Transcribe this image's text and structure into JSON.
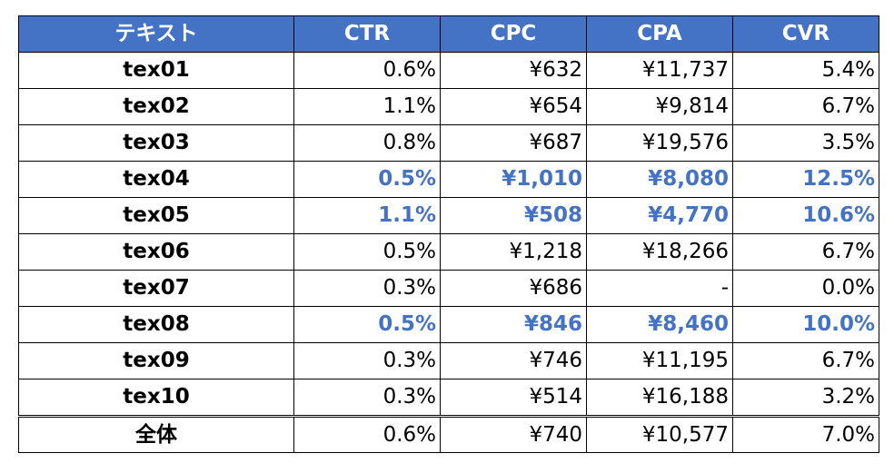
{
  "table": {
    "headers": [
      "テキスト",
      "CTR",
      "CPC",
      "CPA",
      "CVR"
    ],
    "rows": [
      {
        "name": "tex01",
        "ctr": "0.6%",
        "cpc": "¥632",
        "cpa": "¥11,737",
        "cvr": "5.4%",
        "highlight": false
      },
      {
        "name": "tex02",
        "ctr": "1.1%",
        "cpc": "¥654",
        "cpa": "¥9,814",
        "cvr": "6.7%",
        "highlight": false
      },
      {
        "name": "tex03",
        "ctr": "0.8%",
        "cpc": "¥687",
        "cpa": "¥19,576",
        "cvr": "3.5%",
        "highlight": false
      },
      {
        "name": "tex04",
        "ctr": "0.5%",
        "cpc": "¥1,010",
        "cpa": "¥8,080",
        "cvr": "12.5%",
        "highlight": true
      },
      {
        "name": "tex05",
        "ctr": "1.1%",
        "cpc": "¥508",
        "cpa": "¥4,770",
        "cvr": "10.6%",
        "highlight": true
      },
      {
        "name": "tex06",
        "ctr": "0.5%",
        "cpc": "¥1,218",
        "cpa": "¥18,266",
        "cvr": "6.7%",
        "highlight": false
      },
      {
        "name": "tex07",
        "ctr": "0.3%",
        "cpc": "¥686",
        "cpa": "-",
        "cvr": "0.0%",
        "highlight": false
      },
      {
        "name": "tex08",
        "ctr": "0.5%",
        "cpc": "¥846",
        "cpa": "¥8,460",
        "cvr": "10.0%",
        "highlight": true
      },
      {
        "name": "tex09",
        "ctr": "0.3%",
        "cpc": "¥746",
        "cpa": "¥11,195",
        "cvr": "6.7%",
        "highlight": false
      },
      {
        "name": "tex10",
        "ctr": "0.3%",
        "cpc": "¥514",
        "cpa": "¥16,188",
        "cvr": "3.2%",
        "highlight": false
      }
    ],
    "total": {
      "name": "全体",
      "ctr": "0.6%",
      "cpc": "¥740",
      "cpa": "¥10,577",
      "cvr": "7.0%"
    }
  },
  "colors": {
    "header_bg": "#4472c4",
    "header_text": "#ffffff",
    "highlight_text": "#4472c4",
    "border": "#000000"
  }
}
